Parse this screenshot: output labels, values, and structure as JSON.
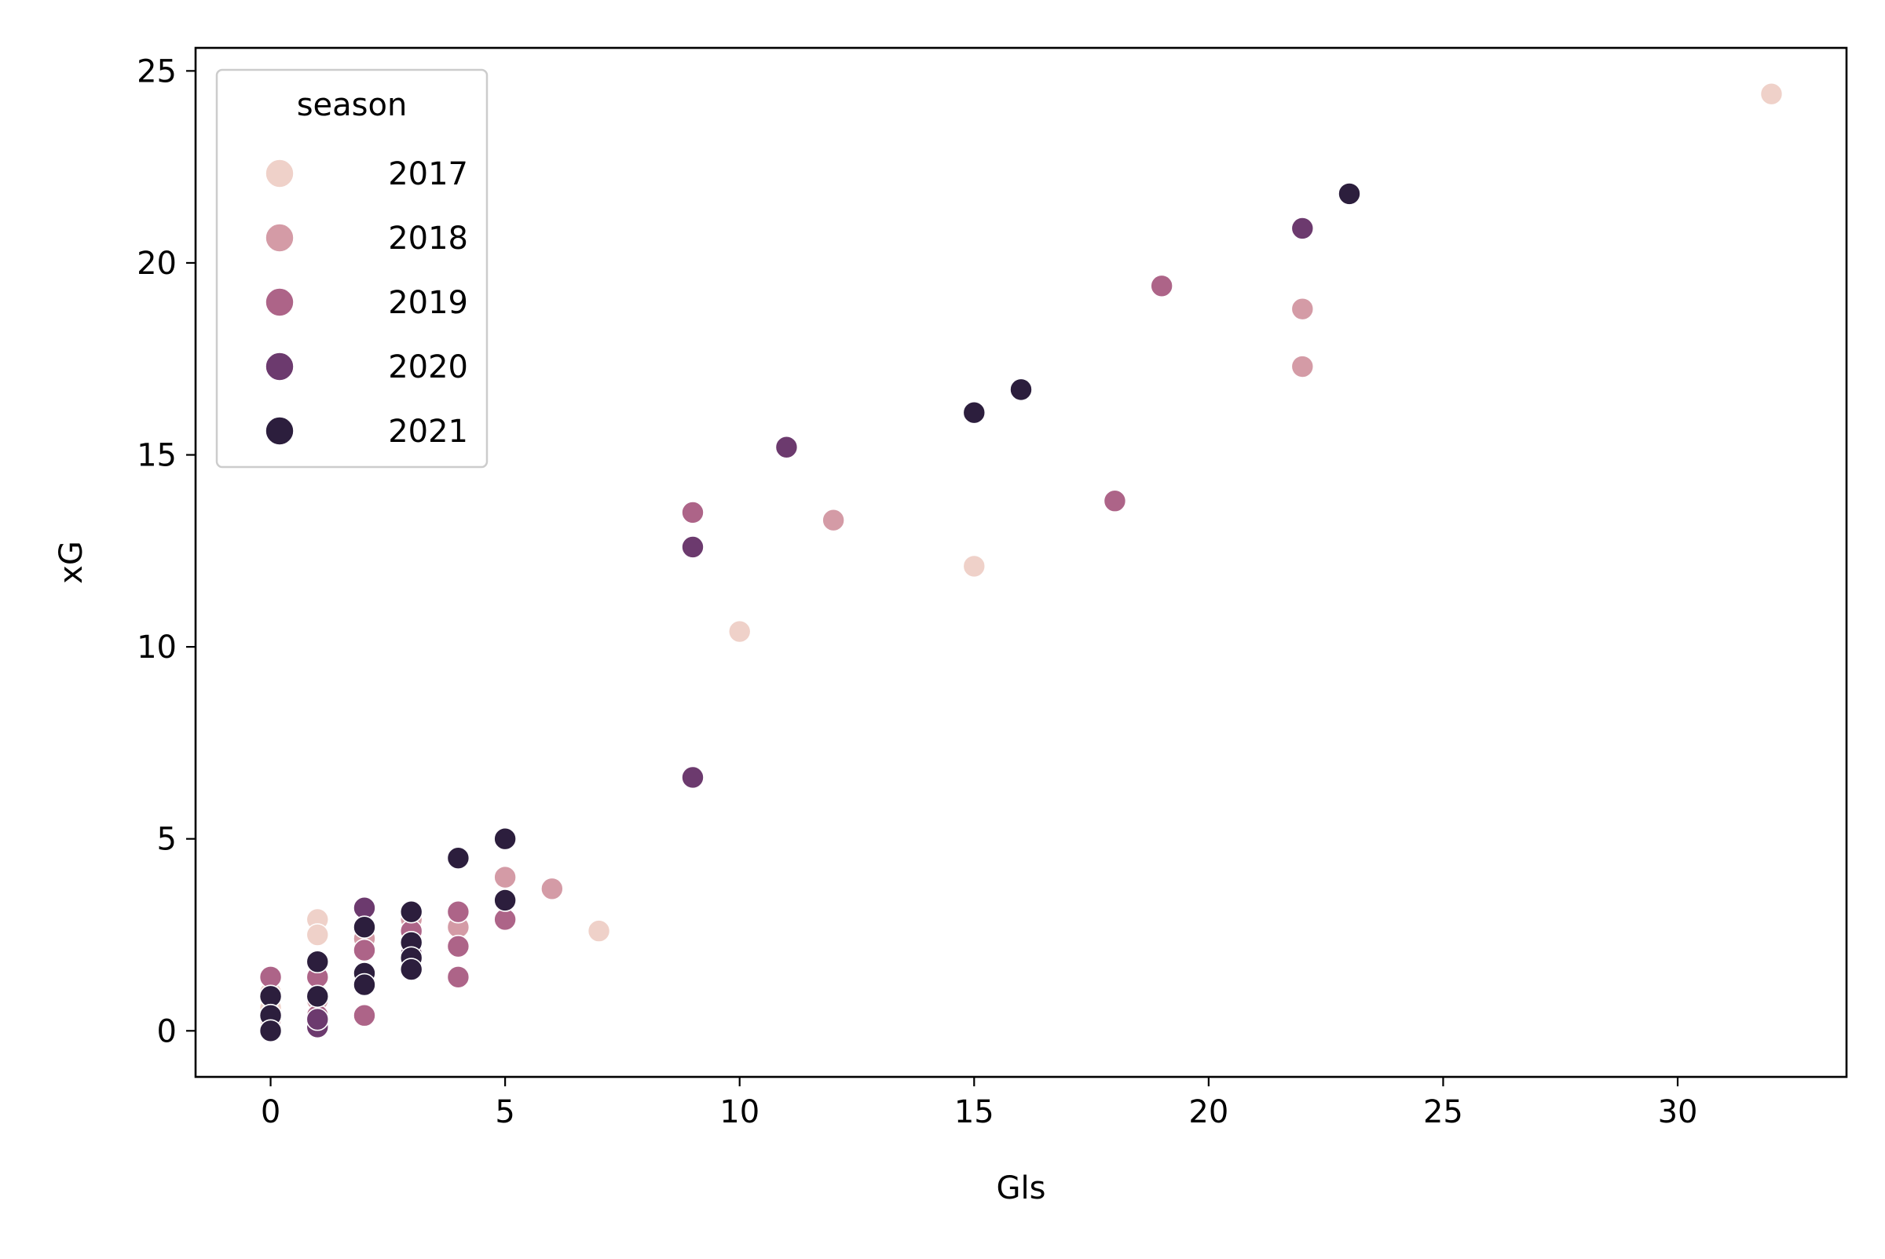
{
  "chart_data": {
    "type": "scatter",
    "title": "",
    "xlabel": "Gls",
    "ylabel": "xG",
    "xlim": [
      -1.6,
      33.6
    ],
    "ylim": [
      -1.2,
      25.6
    ],
    "xticks": [
      0,
      5,
      10,
      15,
      20,
      25,
      30
    ],
    "yticks": [
      0,
      5,
      10,
      15,
      20,
      25
    ],
    "grid": false,
    "legend": {
      "title": "season",
      "position": "top-left"
    },
    "series": [
      {
        "name": "2017",
        "color": "#efd1c9",
        "points": [
          [
            32,
            24.4
          ],
          [
            15,
            12.1
          ],
          [
            10,
            10.4
          ],
          [
            7,
            2.6
          ],
          [
            1,
            2.9
          ],
          [
            1,
            2.5
          ],
          [
            0,
            0.6
          ],
          [
            0,
            1.0
          ],
          [
            2,
            2.6
          ],
          [
            3,
            2.7
          ]
        ]
      },
      {
        "name": "2018",
        "color": "#d49ba6",
        "points": [
          [
            22,
            18.8
          ],
          [
            22,
            17.3
          ],
          [
            12,
            13.3
          ],
          [
            6,
            3.7
          ],
          [
            5,
            4.0
          ],
          [
            4,
            2.7
          ],
          [
            2,
            2.4
          ],
          [
            1,
            0.8
          ],
          [
            0,
            0.3
          ],
          [
            3,
            2.9
          ]
        ]
      },
      {
        "name": "2019",
        "color": "#ad6488",
        "points": [
          [
            19,
            19.4
          ],
          [
            18,
            13.8
          ],
          [
            9,
            13.5
          ],
          [
            5,
            2.9
          ],
          [
            4,
            3.1
          ],
          [
            4,
            2.2
          ],
          [
            4,
            1.4
          ],
          [
            2,
            2.1
          ],
          [
            2,
            0.4
          ],
          [
            1,
            1.4
          ],
          [
            0,
            1.4
          ],
          [
            3,
            2.6
          ],
          [
            1,
            0.4
          ]
        ]
      },
      {
        "name": "2020",
        "color": "#6c3a6e",
        "points": [
          [
            22,
            20.9
          ],
          [
            11,
            15.2
          ],
          [
            9,
            12.6
          ],
          [
            9,
            6.6
          ],
          [
            2,
            3.2
          ],
          [
            1,
            0.1
          ],
          [
            1,
            0.3
          ],
          [
            0,
            0.4
          ],
          [
            2,
            1.4
          ],
          [
            3,
            2.0
          ]
        ]
      },
      {
        "name": "2021",
        "color": "#2c1e3d",
        "points": [
          [
            23,
            21.8
          ],
          [
            16,
            16.7
          ],
          [
            15,
            16.1
          ],
          [
            5,
            5.0
          ],
          [
            5,
            3.4
          ],
          [
            4,
            4.5
          ],
          [
            3,
            3.1
          ],
          [
            3,
            2.3
          ],
          [
            3,
            1.9
          ],
          [
            3,
            1.6
          ],
          [
            2,
            2.7
          ],
          [
            2,
            1.5
          ],
          [
            2,
            1.2
          ],
          [
            1,
            1.8
          ],
          [
            1,
            0.9
          ],
          [
            0,
            0.9
          ],
          [
            0,
            0.4
          ],
          [
            0,
            0.0
          ]
        ]
      }
    ]
  }
}
